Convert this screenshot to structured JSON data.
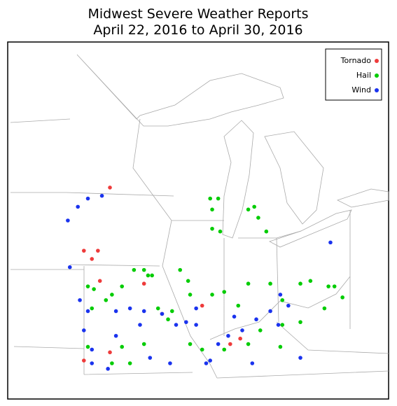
{
  "map": {
    "title": [
      "Midwest Severe Weather Reports",
      "April 22, 2016 to April 30, 2016"
    ],
    "series": [
      {
        "name": "Tornado",
        "color": "#ee3b3b",
        "points": [
          [
            -93.4,
            43.7
          ],
          [
            -94.7,
            41.4
          ],
          [
            -94.0,
            41.4
          ],
          [
            -94.3,
            41.1
          ],
          [
            -93.9,
            40.3
          ],
          [
            -91.7,
            40.2
          ],
          [
            -90.8,
            39.1
          ],
          [
            -88.8,
            39.4
          ],
          [
            -86.9,
            38.2
          ],
          [
            -87.4,
            38.0
          ],
          [
            -93.4,
            37.7
          ],
          [
            -94.7,
            37.4
          ]
        ]
      },
      {
        "name": "Hail",
        "color": "#00cc00",
        "points": [
          [
            -88.4,
            43.3
          ],
          [
            -88.0,
            43.3
          ],
          [
            -88.3,
            42.9
          ],
          [
            -88.3,
            42.2
          ],
          [
            -87.9,
            42.1
          ],
          [
            -86.5,
            42.9
          ],
          [
            -86.2,
            43.0
          ],
          [
            -86.0,
            42.6
          ],
          [
            -85.6,
            42.1
          ],
          [
            -94.5,
            40.1
          ],
          [
            -94.2,
            40.0
          ],
          [
            -94.3,
            39.3
          ],
          [
            -93.6,
            39.6
          ],
          [
            -93.3,
            39.8
          ],
          [
            -92.8,
            40.1
          ],
          [
            -92.2,
            40.7
          ],
          [
            -91.7,
            40.7
          ],
          [
            -91.3,
            40.5
          ],
          [
            -91.0,
            39.3
          ],
          [
            -90.3,
            39.2
          ],
          [
            -89.9,
            40.7
          ],
          [
            -89.5,
            40.3
          ],
          [
            -89.4,
            39.8
          ],
          [
            -88.3,
            39.8
          ],
          [
            -87.7,
            39.9
          ],
          [
            -87.0,
            39.4
          ],
          [
            -86.5,
            40.2
          ],
          [
            -85.4,
            40.2
          ],
          [
            -84.8,
            39.6
          ],
          [
            -83.9,
            40.2
          ],
          [
            -83.4,
            40.3
          ],
          [
            -82.5,
            40.1
          ],
          [
            -82.2,
            40.1
          ],
          [
            -81.8,
            39.7
          ],
          [
            -82.7,
            39.3
          ],
          [
            -83.9,
            38.8
          ],
          [
            -84.8,
            38.7
          ],
          [
            -84.9,
            37.9
          ],
          [
            -85.9,
            38.5
          ],
          [
            -86.5,
            38.0
          ],
          [
            -87.7,
            37.8
          ],
          [
            -88.8,
            37.8
          ],
          [
            -89.4,
            38.0
          ],
          [
            -91.7,
            38.0
          ],
          [
            -92.8,
            37.9
          ],
          [
            -92.4,
            37.3
          ],
          [
            -93.3,
            37.3
          ],
          [
            -94.5,
            37.9
          ],
          [
            -91.5,
            40.5
          ],
          [
            -90.5,
            38.9
          ]
        ]
      },
      {
        "name": "Wind",
        "color": "#1a33ee",
        "points": [
          [
            -95.5,
            42.5
          ],
          [
            -95.0,
            43.0
          ],
          [
            -94.5,
            43.3
          ],
          [
            -93.8,
            43.4
          ],
          [
            -95.4,
            40.8
          ],
          [
            -94.9,
            39.6
          ],
          [
            -94.5,
            39.2
          ],
          [
            -93.1,
            39.2
          ],
          [
            -92.4,
            39.3
          ],
          [
            -91.7,
            39.2
          ],
          [
            -90.8,
            39.1
          ],
          [
            -90.1,
            38.7
          ],
          [
            -89.6,
            38.8
          ],
          [
            -89.1,
            38.7
          ],
          [
            -88.6,
            37.3
          ],
          [
            -88.4,
            37.4
          ],
          [
            -88.0,
            38.0
          ],
          [
            -87.5,
            38.3
          ],
          [
            -86.8,
            38.5
          ],
          [
            -86.1,
            38.9
          ],
          [
            -85.4,
            39.2
          ],
          [
            -85.0,
            38.7
          ],
          [
            -84.9,
            39.8
          ],
          [
            -84.5,
            39.4
          ],
          [
            -83.9,
            37.5
          ],
          [
            -90.4,
            37.3
          ],
          [
            -91.4,
            37.5
          ],
          [
            -93.5,
            37.1
          ],
          [
            -94.3,
            37.3
          ],
          [
            -94.7,
            38.5
          ],
          [
            -94.3,
            37.8
          ],
          [
            -93.1,
            38.3
          ],
          [
            -82.4,
            41.7
          ],
          [
            -86.3,
            37.3
          ],
          [
            -87.2,
            39.0
          ],
          [
            -91.9,
            38.7
          ],
          [
            -89.1,
            39.3
          ]
        ]
      }
    ]
  }
}
